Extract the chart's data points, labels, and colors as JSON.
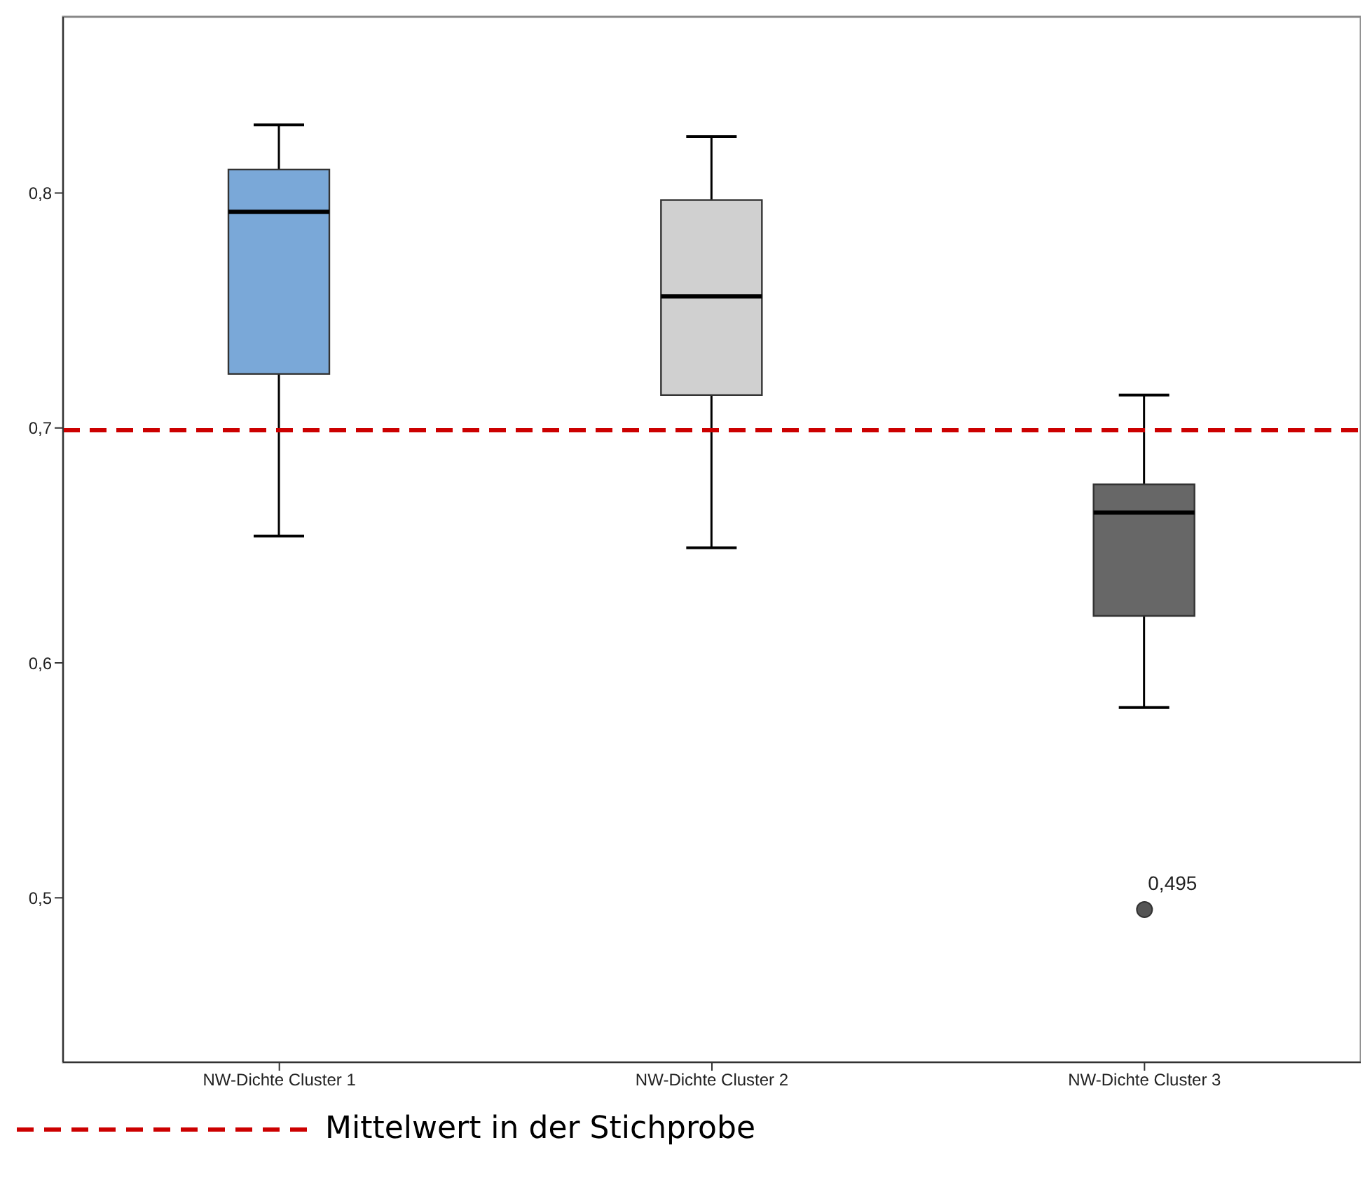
{
  "chart_data": {
    "type": "box",
    "categories": [
      "NW-Dichte Cluster 1",
      "NW-Dichte Cluster 2",
      "NW-Dichte Cluster 3"
    ],
    "boxes": [
      {
        "low": 0.654,
        "q1": 0.723,
        "median": 0.792,
        "q3": 0.81,
        "high": 0.829
      },
      {
        "low": 0.649,
        "q1": 0.714,
        "median": 0.756,
        "q3": 0.797,
        "high": 0.824
      },
      {
        "low": 0.581,
        "q1": 0.62,
        "median": 0.664,
        "q3": 0.676,
        "high": 0.714,
        "outliers": [
          0.495
        ]
      }
    ],
    "colors": [
      "#7aa8d8",
      "#d0d0d0",
      "#676767"
    ],
    "ylim": [
      0.43,
      0.875
    ],
    "yticks": [
      {
        "value": 0.5,
        "label": "0,5"
      },
      {
        "value": 0.6,
        "label": "0,6"
      },
      {
        "value": 0.7,
        "label": "0,7"
      },
      {
        "value": 0.8,
        "label": "0,8"
      }
    ],
    "ref_lines": [
      {
        "axis": "y",
        "value": 0.699,
        "label": "Mittelwert in der Stichprobe",
        "color": "#cc0000",
        "line_style": "dashed"
      }
    ],
    "annotations": [
      "0,495"
    ],
    "legend": "bottom left",
    "grid": false
  }
}
